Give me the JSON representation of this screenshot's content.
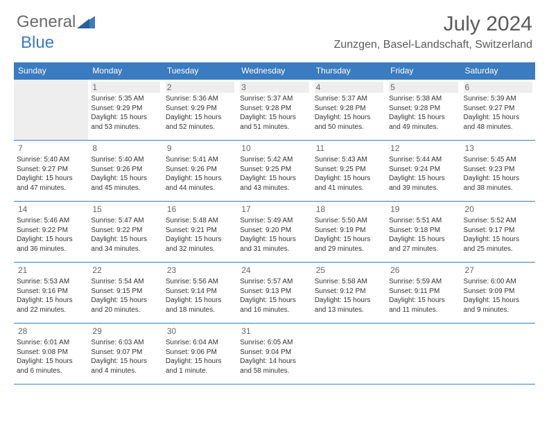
{
  "logo": {
    "text1": "General",
    "text2": "Blue",
    "accent_color": "#3b7bbf",
    "text_color": "#6a6a6a"
  },
  "title": "July 2024",
  "location": "Zunzgen, Basel-Landschaft, Switzerland",
  "header_bg": "#3b7bbf",
  "header_fg": "#ffffff",
  "border_color": "#3b7bbf",
  "blank_bg": "#eeeeee",
  "dayname_fontsize": 12,
  "cell_fontsize": 10,
  "daynum_color": "#666666",
  "text_color": "#333333",
  "days_of_week": [
    "Sunday",
    "Monday",
    "Tuesday",
    "Wednesday",
    "Thursday",
    "Friday",
    "Saturday"
  ],
  "weeks": [
    [
      null,
      {
        "n": "1",
        "sr": "5:35 AM",
        "ss": "9:29 PM",
        "dl": "15 hours and 53 minutes."
      },
      {
        "n": "2",
        "sr": "5:36 AM",
        "ss": "9:29 PM",
        "dl": "15 hours and 52 minutes."
      },
      {
        "n": "3",
        "sr": "5:37 AM",
        "ss": "9:28 PM",
        "dl": "15 hours and 51 minutes."
      },
      {
        "n": "4",
        "sr": "5:37 AM",
        "ss": "9:28 PM",
        "dl": "15 hours and 50 minutes."
      },
      {
        "n": "5",
        "sr": "5:38 AM",
        "ss": "9:28 PM",
        "dl": "15 hours and 49 minutes."
      },
      {
        "n": "6",
        "sr": "5:39 AM",
        "ss": "9:27 PM",
        "dl": "15 hours and 48 minutes."
      }
    ],
    [
      {
        "n": "7",
        "sr": "5:40 AM",
        "ss": "9:27 PM",
        "dl": "15 hours and 47 minutes."
      },
      {
        "n": "8",
        "sr": "5:40 AM",
        "ss": "9:26 PM",
        "dl": "15 hours and 45 minutes."
      },
      {
        "n": "9",
        "sr": "5:41 AM",
        "ss": "9:26 PM",
        "dl": "15 hours and 44 minutes."
      },
      {
        "n": "10",
        "sr": "5:42 AM",
        "ss": "9:25 PM",
        "dl": "15 hours and 43 minutes."
      },
      {
        "n": "11",
        "sr": "5:43 AM",
        "ss": "9:25 PM",
        "dl": "15 hours and 41 minutes."
      },
      {
        "n": "12",
        "sr": "5:44 AM",
        "ss": "9:24 PM",
        "dl": "15 hours and 39 minutes."
      },
      {
        "n": "13",
        "sr": "5:45 AM",
        "ss": "9:23 PM",
        "dl": "15 hours and 38 minutes."
      }
    ],
    [
      {
        "n": "14",
        "sr": "5:46 AM",
        "ss": "9:22 PM",
        "dl": "15 hours and 36 minutes."
      },
      {
        "n": "15",
        "sr": "5:47 AM",
        "ss": "9:22 PM",
        "dl": "15 hours and 34 minutes."
      },
      {
        "n": "16",
        "sr": "5:48 AM",
        "ss": "9:21 PM",
        "dl": "15 hours and 32 minutes."
      },
      {
        "n": "17",
        "sr": "5:49 AM",
        "ss": "9:20 PM",
        "dl": "15 hours and 31 minutes."
      },
      {
        "n": "18",
        "sr": "5:50 AM",
        "ss": "9:19 PM",
        "dl": "15 hours and 29 minutes."
      },
      {
        "n": "19",
        "sr": "5:51 AM",
        "ss": "9:18 PM",
        "dl": "15 hours and 27 minutes."
      },
      {
        "n": "20",
        "sr": "5:52 AM",
        "ss": "9:17 PM",
        "dl": "15 hours and 25 minutes."
      }
    ],
    [
      {
        "n": "21",
        "sr": "5:53 AM",
        "ss": "9:16 PM",
        "dl": "15 hours and 22 minutes."
      },
      {
        "n": "22",
        "sr": "5:54 AM",
        "ss": "9:15 PM",
        "dl": "15 hours and 20 minutes."
      },
      {
        "n": "23",
        "sr": "5:56 AM",
        "ss": "9:14 PM",
        "dl": "15 hours and 18 minutes."
      },
      {
        "n": "24",
        "sr": "5:57 AM",
        "ss": "9:13 PM",
        "dl": "15 hours and 16 minutes."
      },
      {
        "n": "25",
        "sr": "5:58 AM",
        "ss": "9:12 PM",
        "dl": "15 hours and 13 minutes."
      },
      {
        "n": "26",
        "sr": "5:59 AM",
        "ss": "9:11 PM",
        "dl": "15 hours and 11 minutes."
      },
      {
        "n": "27",
        "sr": "6:00 AM",
        "ss": "9:09 PM",
        "dl": "15 hours and 9 minutes."
      }
    ],
    [
      {
        "n": "28",
        "sr": "6:01 AM",
        "ss": "9:08 PM",
        "dl": "15 hours and 6 minutes."
      },
      {
        "n": "29",
        "sr": "6:03 AM",
        "ss": "9:07 PM",
        "dl": "15 hours and 4 minutes."
      },
      {
        "n": "30",
        "sr": "6:04 AM",
        "ss": "9:06 PM",
        "dl": "15 hours and 1 minute."
      },
      {
        "n": "31",
        "sr": "6:05 AM",
        "ss": "9:04 PM",
        "dl": "14 hours and 58 minutes."
      },
      null,
      null,
      null
    ]
  ],
  "labels": {
    "sunrise": "Sunrise:",
    "sunset": "Sunset:",
    "daylight": "Daylight:"
  }
}
